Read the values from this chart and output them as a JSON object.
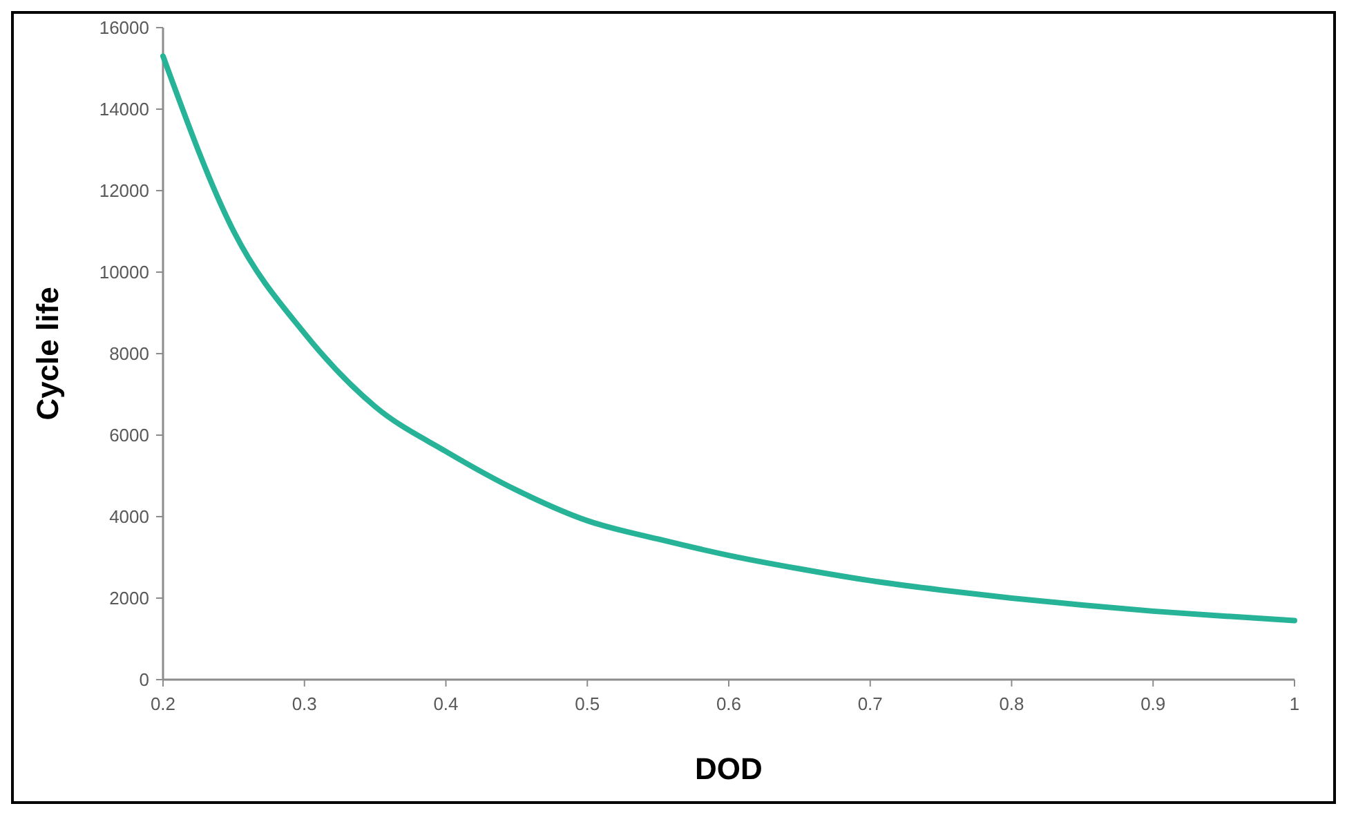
{
  "chart_data": {
    "type": "line",
    "xlabel": "DOD",
    "ylabel": "Cycle life",
    "x": [
      0.2,
      0.25,
      0.3,
      0.35,
      0.4,
      0.45,
      0.5,
      0.55,
      0.6,
      0.65,
      0.7,
      0.75,
      0.8,
      0.85,
      0.9,
      0.95,
      1
    ],
    "series": [
      {
        "color": "#26b398",
        "values": [
          15300,
          11000,
          8500,
          6700,
          5600,
          4650,
          3900,
          3450,
          3050,
          2720,
          2430,
          2200,
          2000,
          1830,
          1680,
          1560,
          1450
        ]
      }
    ],
    "xlim": [
      0.2,
      1
    ],
    "xticks": [
      0.2,
      0.3,
      0.4,
      0.5,
      0.6,
      0.7,
      0.8,
      0.9,
      1
    ],
    "ylim": [
      0,
      16000
    ],
    "yticks": [
      0,
      2000,
      4000,
      6000,
      8000,
      10000,
      12000,
      14000,
      16000
    ],
    "grid": false,
    "marker": "none",
    "line_style": "solid"
  }
}
